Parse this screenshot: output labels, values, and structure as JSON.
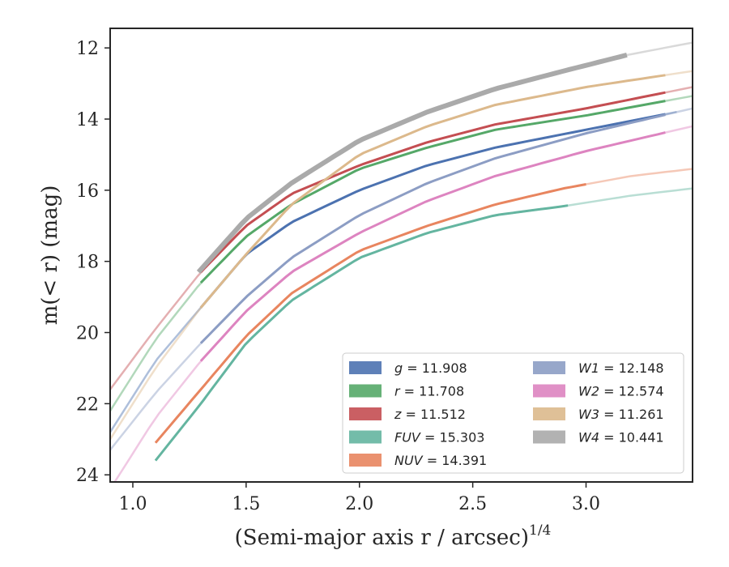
{
  "chart_data": {
    "type": "line",
    "xlabel": "(Semi-major axis r / arcsec)",
    "xlabel_exponent": "1/4",
    "ylabel": "m(< r) (mag)",
    "xlim": [
      0.9,
      3.47
    ],
    "ylim": [
      24.2,
      11.45
    ],
    "y_inverted": true,
    "grid": false,
    "legend_placement": "lower-right",
    "xticks": [
      {
        "value": 1.0,
        "label": "1.0"
      },
      {
        "value": 1.5,
        "label": "1.5"
      },
      {
        "value": 2.0,
        "label": "2.0"
      },
      {
        "value": 2.5,
        "label": "2.5"
      },
      {
        "value": 3.0,
        "label": "3.0"
      }
    ],
    "yticks": [
      {
        "value": 12,
        "label": "12"
      },
      {
        "value": 14,
        "label": "14"
      },
      {
        "value": 16,
        "label": "16"
      },
      {
        "value": 18,
        "label": "18"
      },
      {
        "value": 20,
        "label": "20"
      },
      {
        "value": 22,
        "label": "22"
      },
      {
        "value": 24,
        "label": "24"
      }
    ],
    "series": [
      {
        "name": "g",
        "legend_value": "11.908",
        "color": "#4c72b0",
        "x": [
          0.9,
          1.1,
          1.3,
          1.5,
          1.7,
          2.0,
          2.3,
          2.6,
          3.0,
          3.4
        ],
        "y": [
          22.8,
          20.8,
          19.3,
          17.8,
          16.9,
          16.0,
          15.3,
          14.8,
          14.3,
          13.8
        ],
        "solid_range": [
          1.3,
          3.35
        ]
      },
      {
        "name": "r",
        "legend_value": "11.708",
        "color": "#55a868",
        "x": [
          0.9,
          1.1,
          1.3,
          1.5,
          1.7,
          2.0,
          2.3,
          2.6,
          3.0,
          3.47
        ],
        "y": [
          22.2,
          20.2,
          18.6,
          17.3,
          16.4,
          15.4,
          14.8,
          14.3,
          13.9,
          13.35
        ],
        "solid_range": [
          1.3,
          3.35
        ]
      },
      {
        "name": "z",
        "legend_value": "11.512",
        "color": "#c44e52",
        "x": [
          0.9,
          1.1,
          1.3,
          1.5,
          1.7,
          2.0,
          2.3,
          2.6,
          3.0,
          3.47
        ],
        "y": [
          21.6,
          19.9,
          18.3,
          17.0,
          16.1,
          15.3,
          14.65,
          14.15,
          13.7,
          13.1
        ],
        "solid_range": [
          1.3,
          3.35
        ]
      },
      {
        "name": "FUV",
        "legend_value": "15.303",
        "color": "#64b5a0",
        "x": [
          1.1,
          1.3,
          1.5,
          1.7,
          2.0,
          2.3,
          2.6,
          2.9,
          3.2,
          3.47
        ],
        "y": [
          23.6,
          22.0,
          20.3,
          19.1,
          17.9,
          17.2,
          16.7,
          16.45,
          16.15,
          15.95
        ],
        "solid_range": [
          1.1,
          2.92
        ]
      },
      {
        "name": "NUV",
        "legend_value": "14.391",
        "color": "#e8855f",
        "x": [
          1.1,
          1.3,
          1.5,
          1.7,
          2.0,
          2.3,
          2.6,
          2.9,
          3.2,
          3.47
        ],
        "y": [
          23.1,
          21.6,
          20.1,
          18.9,
          17.7,
          17.0,
          16.4,
          15.95,
          15.6,
          15.4
        ],
        "solid_range": [
          1.1,
          3.0
        ]
      },
      {
        "name": "W1",
        "legend_value": "12.148",
        "color": "#8c9dc4",
        "x": [
          0.9,
          1.1,
          1.3,
          1.5,
          1.7,
          2.0,
          2.3,
          2.6,
          3.0,
          3.47
        ],
        "y": [
          23.3,
          21.7,
          20.3,
          19.0,
          17.9,
          16.7,
          15.8,
          15.1,
          14.4,
          13.7
        ],
        "solid_range": [
          1.3,
          3.35
        ]
      },
      {
        "name": "W2",
        "legend_value": "12.574",
        "color": "#dd84c0",
        "x": [
          0.9,
          1.1,
          1.3,
          1.5,
          1.7,
          2.0,
          2.3,
          2.6,
          3.0,
          3.47
        ],
        "y": [
          24.4,
          22.4,
          20.8,
          19.4,
          18.3,
          17.2,
          16.3,
          15.6,
          14.9,
          14.2
        ],
        "solid_range": [
          1.3,
          3.35
        ]
      },
      {
        "name": "W3",
        "legend_value": "11.261",
        "color": "#dcb98c",
        "x": [
          0.9,
          1.1,
          1.3,
          1.5,
          1.7,
          2.0,
          2.3,
          2.6,
          3.0,
          3.47
        ],
        "y": [
          23.0,
          21.0,
          19.3,
          17.8,
          16.4,
          15.0,
          14.2,
          13.6,
          13.1,
          12.65
        ],
        "solid_range": [
          1.3,
          3.35
        ]
      },
      {
        "name": "W4",
        "legend_value": "10.441",
        "color": "#aaaaaa",
        "x": [
          1.29,
          1.5,
          1.7,
          2.0,
          2.3,
          2.6,
          2.9,
          3.18,
          3.47
        ],
        "y": [
          18.3,
          16.8,
          15.8,
          14.6,
          13.8,
          13.15,
          12.65,
          12.2,
          11.85
        ],
        "solid_range": [
          1.29,
          3.18
        ]
      }
    ]
  }
}
